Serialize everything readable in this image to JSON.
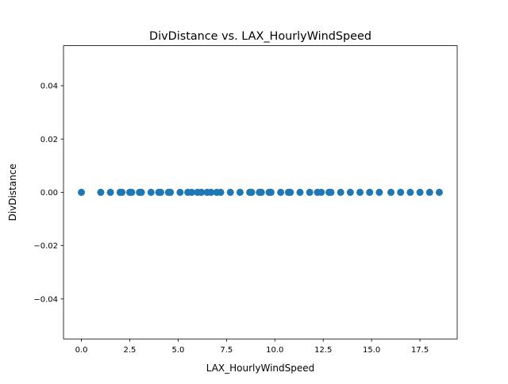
{
  "chart_data": {
    "type": "scatter",
    "title": "DivDistance vs. LAX_HourlyWindSpeed",
    "xlabel": "LAX_HourlyWindSpeed",
    "ylabel": "DivDistance",
    "xlim": [
      -0.925,
      19.425
    ],
    "ylim": [
      -0.055,
      0.055
    ],
    "x_ticks": [
      0.0,
      2.5,
      5.0,
      7.5,
      10.0,
      12.5,
      15.0,
      17.5
    ],
    "x_tick_labels": [
      "0.0",
      "2.5",
      "5.0",
      "7.5",
      "10.0",
      "12.5",
      "15.0",
      "17.5"
    ],
    "y_ticks": [
      -0.04,
      -0.02,
      0.0,
      0.02,
      0.04
    ],
    "y_tick_labels": [
      "−0.04",
      "−0.02",
      "0.00",
      "0.02",
      "0.04"
    ],
    "grid": false,
    "marker_color": "#1f77b4",
    "series": [
      {
        "name": "",
        "points": [
          {
            "x": 0.0,
            "y": 0
          },
          {
            "x": 1.0,
            "y": 0
          },
          {
            "x": 1.5,
            "y": 0
          },
          {
            "x": 2.0,
            "y": 0
          },
          {
            "x": 2.1,
            "y": 0
          },
          {
            "x": 2.5,
            "y": 0
          },
          {
            "x": 2.6,
            "y": 0
          },
          {
            "x": 3.0,
            "y": 0
          },
          {
            "x": 3.1,
            "y": 0
          },
          {
            "x": 3.6,
            "y": 0
          },
          {
            "x": 4.0,
            "y": 0
          },
          {
            "x": 4.1,
            "y": 0
          },
          {
            "x": 4.5,
            "y": 0
          },
          {
            "x": 4.6,
            "y": 0
          },
          {
            "x": 5.1,
            "y": 0
          },
          {
            "x": 5.5,
            "y": 0
          },
          {
            "x": 5.7,
            "y": 0
          },
          {
            "x": 6.0,
            "y": 0
          },
          {
            "x": 6.2,
            "y": 0
          },
          {
            "x": 6.5,
            "y": 0
          },
          {
            "x": 6.7,
            "y": 0
          },
          {
            "x": 7.0,
            "y": 0
          },
          {
            "x": 7.2,
            "y": 0
          },
          {
            "x": 7.7,
            "y": 0
          },
          {
            "x": 8.2,
            "y": 0
          },
          {
            "x": 8.7,
            "y": 0
          },
          {
            "x": 8.8,
            "y": 0
          },
          {
            "x": 9.2,
            "y": 0
          },
          {
            "x": 9.3,
            "y": 0
          },
          {
            "x": 9.7,
            "y": 0
          },
          {
            "x": 9.8,
            "y": 0
          },
          {
            "x": 10.3,
            "y": 0
          },
          {
            "x": 10.7,
            "y": 0
          },
          {
            "x": 10.8,
            "y": 0
          },
          {
            "x": 11.3,
            "y": 0
          },
          {
            "x": 11.8,
            "y": 0
          },
          {
            "x": 12.2,
            "y": 0
          },
          {
            "x": 12.4,
            "y": 0
          },
          {
            "x": 12.8,
            "y": 0
          },
          {
            "x": 12.9,
            "y": 0
          },
          {
            "x": 13.4,
            "y": 0
          },
          {
            "x": 13.9,
            "y": 0
          },
          {
            "x": 14.4,
            "y": 0
          },
          {
            "x": 14.9,
            "y": 0
          },
          {
            "x": 15.4,
            "y": 0
          },
          {
            "x": 16.0,
            "y": 0
          },
          {
            "x": 16.5,
            "y": 0
          },
          {
            "x": 17.0,
            "y": 0
          },
          {
            "x": 17.5,
            "y": 0
          },
          {
            "x": 18.0,
            "y": 0
          },
          {
            "x": 18.5,
            "y": 0
          }
        ]
      }
    ]
  }
}
